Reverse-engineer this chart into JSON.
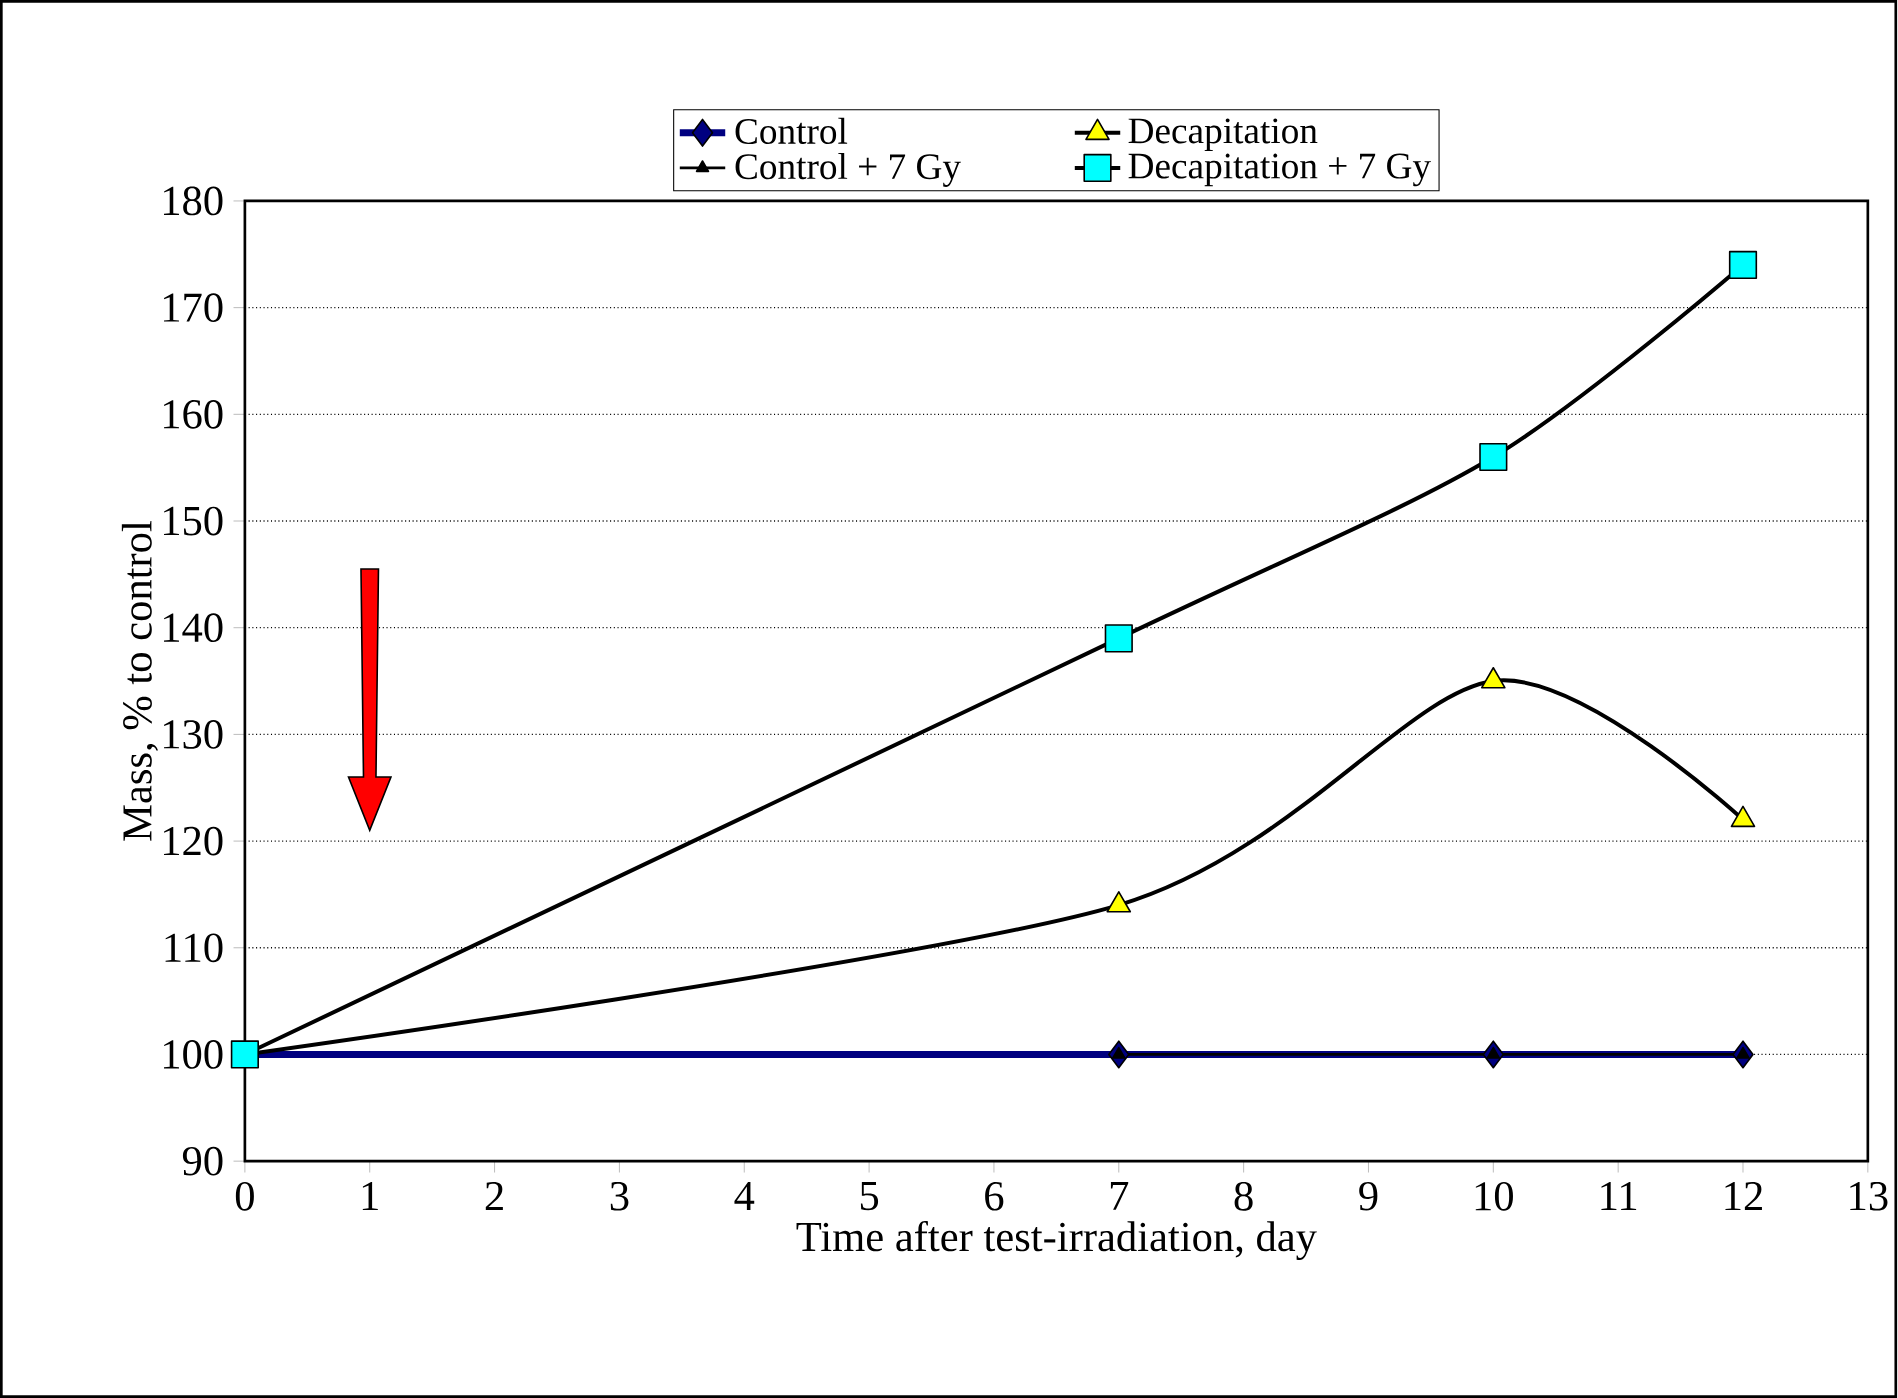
{
  "chart_data": {
    "type": "line",
    "xlabel": "Time after test-irradiation, day",
    "ylabel": "Mass, % to control",
    "xlim": [
      0,
      13
    ],
    "ylim": [
      90,
      180
    ],
    "xticks": [
      0,
      1,
      2,
      3,
      4,
      5,
      6,
      7,
      8,
      9,
      10,
      11,
      12,
      13
    ],
    "yticks": [
      90,
      100,
      110,
      120,
      130,
      140,
      150,
      160,
      170,
      180
    ],
    "grid": "y",
    "legend": "top",
    "series": [
      {
        "name": "Control",
        "color": "#000080",
        "marker": "diamond",
        "x": [
          0,
          7,
          10,
          12
        ],
        "values": [
          100,
          100,
          100,
          100
        ]
      },
      {
        "name": "Decapitation",
        "color": "#ffff00",
        "marker": "triangle",
        "x": [
          0,
          7,
          10,
          12
        ],
        "values": [
          100,
          114,
          135,
          122
        ]
      },
      {
        "name": "Control + 7 Gy",
        "color": "#000000",
        "marker": "triangle",
        "x": [
          7,
          10,
          12
        ],
        "values": [
          100,
          100,
          100
        ]
      },
      {
        "name": "Decapitation + 7 Gy",
        "color": "#00ffff",
        "marker": "square",
        "x": [
          0,
          7,
          10,
          12
        ],
        "values": [
          100,
          139,
          156,
          174
        ]
      }
    ]
  }
}
